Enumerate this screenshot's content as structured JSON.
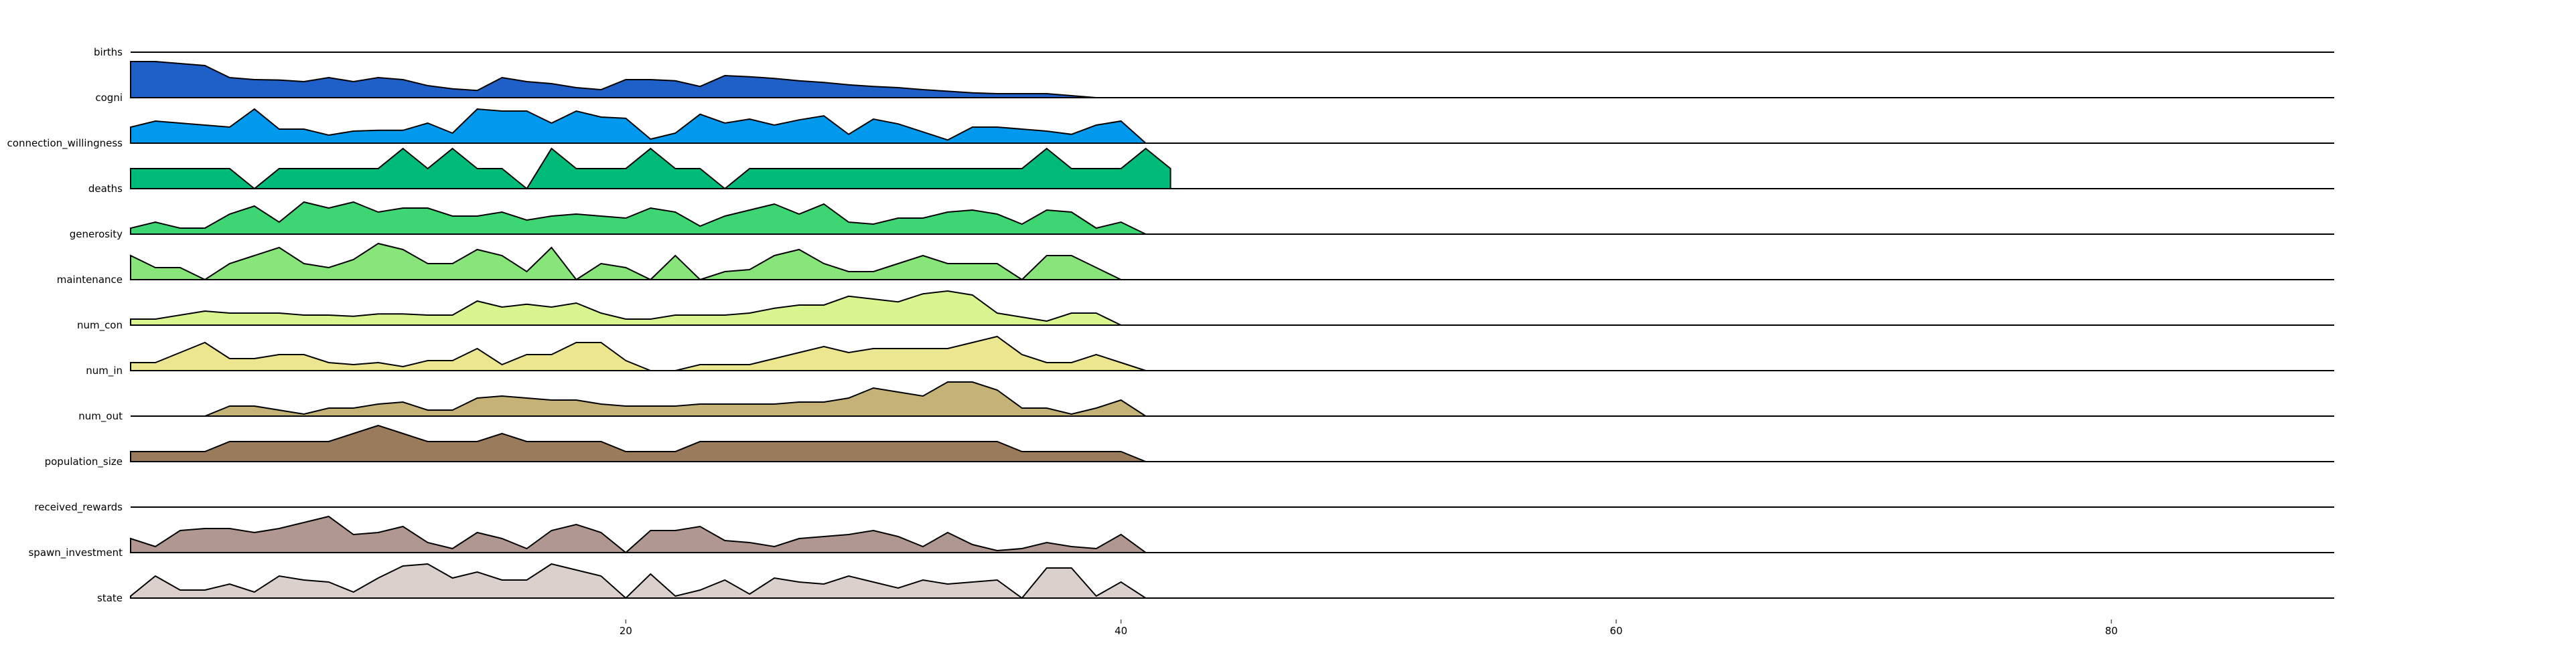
{
  "chart_data": {
    "type": "area",
    "subtype": "ridgeline",
    "title": "",
    "xlabel": "",
    "ylabel": "",
    "xlim": [
      0,
      89
    ],
    "xticks": [
      20,
      40,
      60,
      80
    ],
    "grid": false,
    "series": [
      {
        "name": "births",
        "color": "#1f5fc8",
        "x": [
          0,
          1,
          2,
          3,
          4,
          5,
          6,
          7,
          8,
          9,
          10,
          11,
          12,
          13,
          14,
          15,
          16,
          17,
          18,
          19,
          20,
          21,
          22,
          23,
          24,
          25,
          26,
          27,
          28,
          29,
          30,
          31,
          32,
          33,
          34,
          35,
          36,
          37,
          38,
          39,
          40
        ],
        "values": [
          0.9,
          0.9,
          0.85,
          0.8,
          0.5,
          0.45,
          0.44,
          0.4,
          0.5,
          0.4,
          0.5,
          0.45,
          0.3,
          0.22,
          0.18,
          0.5,
          0.4,
          0.35,
          0.25,
          0.2,
          0.45,
          0.45,
          0.42,
          0.28,
          0.55,
          0.52,
          0.48,
          0.42,
          0.38,
          0.32,
          0.28,
          0.25,
          0.2,
          0.16,
          0.12,
          0.1,
          0.1,
          0.1,
          0.05,
          0.0,
          0.0
        ]
      },
      {
        "name": "cogni",
        "color": "#0099ee",
        "x": [
          0,
          1,
          2,
          3,
          4,
          5,
          6,
          7,
          8,
          9,
          10,
          11,
          12,
          13,
          14,
          15,
          16,
          17,
          18,
          19,
          20,
          21,
          22,
          23,
          24,
          25,
          26,
          27,
          28,
          29,
          30,
          31,
          32,
          33,
          34,
          35,
          36,
          37,
          38,
          39,
          40,
          41
        ],
        "values": [
          0.4,
          0.55,
          0.5,
          0.45,
          0.4,
          0.85,
          0.35,
          0.35,
          0.2,
          0.3,
          0.32,
          0.32,
          0.5,
          0.25,
          0.85,
          0.8,
          0.8,
          0.5,
          0.8,
          0.65,
          0.62,
          0.1,
          0.25,
          0.72,
          0.5,
          0.6,
          0.45,
          0.58,
          0.68,
          0.22,
          0.6,
          0.48,
          0.28,
          0.08,
          0.4,
          0.4,
          0.35,
          0.3,
          0.22,
          0.45,
          0.55,
          0.0
        ]
      },
      {
        "name": "connection_willingness",
        "color": "#00bb77",
        "baseline": 0.5,
        "x": [
          0,
          1,
          2,
          3,
          4,
          5,
          6,
          7,
          8,
          9,
          10,
          11,
          12,
          13,
          14,
          15,
          16,
          17,
          18,
          19,
          20,
          21,
          22,
          23,
          24,
          25,
          26,
          27,
          28,
          29,
          30,
          31,
          32,
          33,
          34,
          35,
          36,
          37,
          38,
          39,
          40,
          41,
          42
        ],
        "values": [
          0.5,
          1.0,
          1.0,
          1.0,
          1.0,
          0.0,
          1.0,
          1.0,
          1.0,
          1.0,
          0.0,
          1.0,
          0.0,
          1.0,
          1.0,
          0.0,
          1.0,
          1.0,
          1.0,
          1.0,
          1.0,
          1.0,
          1.0,
          0.0,
          1.0,
          1.0,
          1.0,
          1.0,
          1.0,
          1.0,
          1.0,
          1.0,
          1.0,
          1.0,
          1.0,
          1.0,
          1.0,
          1.0,
          1.0,
          1.0,
          1.0,
          1.0,
          1.0
        ],
        "display_values": [
          0.5,
          0.5,
          0.5,
          0.5,
          0.5,
          0.0,
          0.5,
          0.5,
          0.5,
          0.5,
          0.5,
          1.0,
          0.5,
          1.0,
          0.5,
          0.5,
          0.0,
          1.0,
          0.5,
          0.5,
          0.5,
          1.0,
          0.5,
          0.5,
          0.0,
          0.5,
          0.5,
          0.5,
          0.5,
          0.5,
          0.5,
          0.5,
          0.5,
          0.5,
          0.5,
          0.5,
          0.5,
          1.0,
          0.5,
          0.5,
          0.5,
          1.0,
          0.5
        ]
      },
      {
        "name": "deaths",
        "color": "#3dd672",
        "x": [
          0,
          1,
          2,
          3,
          4,
          5,
          6,
          7,
          8,
          9,
          10,
          11,
          12,
          13,
          14,
          15,
          16,
          17,
          18,
          19,
          20,
          21,
          22,
          23,
          24,
          25,
          26,
          27,
          28,
          29,
          30,
          31,
          32,
          33,
          34,
          35,
          36,
          37,
          38,
          39,
          40,
          41
        ],
        "values": [
          0.15,
          0.3,
          0.15,
          0.15,
          0.5,
          0.7,
          0.3,
          0.8,
          0.65,
          0.8,
          0.55,
          0.65,
          0.65,
          0.45,
          0.45,
          0.55,
          0.35,
          0.45,
          0.5,
          0.45,
          0.4,
          0.65,
          0.55,
          0.2,
          0.45,
          0.6,
          0.75,
          0.5,
          0.75,
          0.3,
          0.25,
          0.4,
          0.4,
          0.55,
          0.6,
          0.5,
          0.25,
          0.6,
          0.55,
          0.15,
          0.3,
          0.0
        ]
      },
      {
        "name": "generosity",
        "color": "#88e57a",
        "x": [
          0,
          1,
          2,
          3,
          4,
          5,
          6,
          7,
          8,
          9,
          10,
          11,
          12,
          13,
          14,
          15,
          16,
          17,
          18,
          19,
          20,
          21,
          22,
          23,
          24,
          25,
          26,
          27,
          28,
          29,
          30,
          31,
          32,
          33,
          34,
          35,
          36,
          37,
          38,
          39,
          40
        ],
        "values": [
          0.6,
          0.3,
          0.3,
          0.0,
          0.4,
          0.6,
          0.8,
          0.4,
          0.3,
          0.5,
          0.9,
          0.75,
          0.4,
          0.4,
          0.75,
          0.6,
          0.2,
          0.8,
          0.0,
          0.4,
          0.3,
          0.0,
          0.6,
          0.0,
          0.2,
          0.25,
          0.6,
          0.75,
          0.4,
          0.2,
          0.2,
          0.4,
          0.6,
          0.4,
          0.4,
          0.4,
          0.0,
          0.6,
          0.6,
          0.3,
          0.0
        ]
      },
      {
        "name": "maintenance",
        "color": "#d8f590",
        "x": [
          0,
          1,
          2,
          3,
          4,
          5,
          6,
          7,
          8,
          9,
          10,
          11,
          12,
          13,
          14,
          15,
          16,
          17,
          18,
          19,
          20,
          21,
          22,
          23,
          24,
          25,
          26,
          27,
          28,
          29,
          30,
          31,
          32,
          33,
          34,
          35,
          36,
          37,
          38,
          39,
          40,
          41
        ],
        "values": [
          0.15,
          0.15,
          0.25,
          0.35,
          0.3,
          0.3,
          0.3,
          0.25,
          0.25,
          0.22,
          0.28,
          0.28,
          0.25,
          0.25,
          0.6,
          0.45,
          0.52,
          0.45,
          0.55,
          0.3,
          0.15,
          0.15,
          0.25,
          0.25,
          0.25,
          0.3,
          0.42,
          0.5,
          0.5,
          0.72,
          0.65,
          0.58,
          0.78,
          0.85,
          0.75,
          0.3,
          0.2,
          0.1,
          0.3,
          0.3,
          0.0,
          0.0
        ]
      },
      {
        "name": "num_con",
        "color": "#ece690",
        "x": [
          0,
          1,
          2,
          3,
          4,
          5,
          6,
          7,
          8,
          9,
          10,
          11,
          12,
          13,
          14,
          15,
          16,
          17,
          18,
          19,
          20,
          21,
          22,
          23,
          24,
          25,
          26,
          27,
          28,
          29,
          30,
          31,
          32,
          33,
          34,
          35,
          36,
          37,
          38,
          39,
          40,
          41
        ],
        "values": [
          0.2,
          0.2,
          0.45,
          0.7,
          0.3,
          0.3,
          0.4,
          0.4,
          0.2,
          0.15,
          0.2,
          0.1,
          0.25,
          0.25,
          0.55,
          0.15,
          0.4,
          0.4,
          0.7,
          0.7,
          0.25,
          0.0,
          0.0,
          0.15,
          0.15,
          0.15,
          0.3,
          0.45,
          0.6,
          0.45,
          0.55,
          0.55,
          0.55,
          0.55,
          0.7,
          0.85,
          0.4,
          0.2,
          0.2,
          0.4,
          0.2,
          0.0
        ]
      },
      {
        "name": "num_in",
        "color": "#c4b277",
        "x": [
          0,
          1,
          2,
          3,
          4,
          5,
          6,
          7,
          8,
          9,
          10,
          11,
          12,
          13,
          14,
          15,
          16,
          17,
          18,
          19,
          20,
          21,
          22,
          23,
          24,
          25,
          26,
          27,
          28,
          29,
          30,
          31,
          32,
          33,
          34,
          35,
          36,
          37,
          38,
          39,
          40,
          41
        ],
        "values": [
          0.0,
          0.0,
          0.0,
          0.0,
          0.25,
          0.25,
          0.15,
          0.05,
          0.2,
          0.2,
          0.3,
          0.35,
          0.15,
          0.15,
          0.45,
          0.5,
          0.45,
          0.4,
          0.4,
          0.3,
          0.25,
          0.25,
          0.25,
          0.3,
          0.3,
          0.3,
          0.3,
          0.35,
          0.35,
          0.45,
          0.7,
          0.6,
          0.5,
          0.85,
          0.85,
          0.65,
          0.2,
          0.2,
          0.05,
          0.2,
          0.4,
          0.0
        ]
      },
      {
        "name": "num_out",
        "color": "#9a7c5c",
        "x": [
          0,
          1,
          2,
          3,
          4,
          5,
          6,
          7,
          8,
          9,
          10,
          11,
          12,
          13,
          14,
          15,
          16,
          17,
          18,
          19,
          20,
          21,
          22,
          23,
          24,
          25,
          26,
          27,
          28,
          29,
          30,
          31,
          32,
          33,
          34,
          35,
          36,
          37,
          38,
          39,
          40,
          41
        ],
        "values": [
          0.25,
          0.25,
          0.25,
          0.25,
          0.5,
          0.5,
          0.5,
          0.5,
          0.5,
          0.7,
          0.9,
          0.7,
          0.5,
          0.5,
          0.5,
          0.7,
          0.5,
          0.5,
          0.5,
          0.5,
          0.25,
          0.25,
          0.25,
          0.5,
          0.5,
          0.5,
          0.5,
          0.5,
          0.5,
          0.5,
          0.5,
          0.5,
          0.5,
          0.5,
          0.5,
          0.5,
          0.25,
          0.25,
          0.25,
          0.25,
          0.25,
          0.0
        ]
      },
      {
        "name": "population_size",
        "color": "#8a6a50",
        "x": [
          0,
          89
        ],
        "values": [
          0,
          0
        ]
      },
      {
        "name": "received_rewards",
        "color": "#b09890",
        "x": [
          0,
          1,
          2,
          3,
          4,
          5,
          6,
          7,
          8,
          9,
          10,
          11,
          12,
          13,
          14,
          15,
          16,
          17,
          18,
          19,
          20,
          21,
          22,
          23,
          24,
          25,
          26,
          27,
          28,
          29,
          30,
          31,
          32,
          33,
          34,
          35,
          36,
          37,
          38,
          39,
          40,
          41
        ],
        "values": [
          0.35,
          0.15,
          0.55,
          0.6,
          0.6,
          0.5,
          0.6,
          0.75,
          0.9,
          0.45,
          0.5,
          0.65,
          0.25,
          0.1,
          0.5,
          0.35,
          0.1,
          0.55,
          0.7,
          0.5,
          0.0,
          0.55,
          0.55,
          0.65,
          0.3,
          0.25,
          0.15,
          0.35,
          0.4,
          0.45,
          0.55,
          0.4,
          0.15,
          0.5,
          0.2,
          0.05,
          0.1,
          0.25,
          0.15,
          0.1,
          0.45,
          0.0
        ]
      },
      {
        "name": "spawn_investment",
        "color": "#dbd0cc",
        "x": [
          0,
          1,
          2,
          3,
          4,
          5,
          6,
          7,
          8,
          9,
          10,
          11,
          12,
          13,
          14,
          15,
          16,
          17,
          18,
          19,
          20,
          21,
          22,
          23,
          24,
          25,
          26,
          27,
          28,
          29,
          30,
          31,
          32,
          33,
          34,
          35,
          36,
          37,
          38,
          39,
          40,
          41
        ],
        "values": [
          0.05,
          0.55,
          0.2,
          0.2,
          0.35,
          0.15,
          0.55,
          0.45,
          0.4,
          0.15,
          0.5,
          0.8,
          0.85,
          0.5,
          0.65,
          0.45,
          0.45,
          0.85,
          0.7,
          0.55,
          0.0,
          0.6,
          0.05,
          0.2,
          0.45,
          0.1,
          0.5,
          0.4,
          0.35,
          0.55,
          0.4,
          0.25,
          0.45,
          0.35,
          0.4,
          0.45,
          0.0,
          0.75,
          0.75,
          0.05,
          0.4,
          0.0
        ]
      },
      {
        "name": "state",
        "color": "#ffffff",
        "x": [
          0,
          89
        ],
        "values": [
          0,
          0
        ]
      }
    ],
    "row_labels": [
      "births",
      "cogni",
      "connection_willingness",
      "deaths",
      "generosity",
      "maintenance",
      "num_con",
      "num_in",
      "num_out",
      "population_size",
      "received_rewards",
      "spawn_investment",
      "state"
    ]
  }
}
